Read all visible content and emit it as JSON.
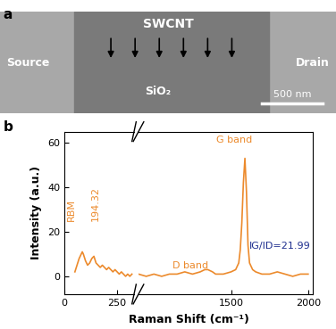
{
  "panel_a": {
    "label": "a",
    "texts": {
      "nanotube": "SWCNT",
      "source": "Source",
      "drain": "Drain",
      "substrate": "SiO₂",
      "scale_bar": "500 nm"
    }
  },
  "chart_data": {
    "type": "line",
    "label": "b",
    "x_label": "Raman Shift (cm⁻¹)",
    "y_label": "Intensity (a.u.)",
    "ylim": [
      -8,
      65
    ],
    "yticks": [
      0,
      20,
      40,
      60
    ],
    "color": "#ec8a2c",
    "segments": [
      {
        "xlim": [
          0,
          330
        ],
        "xticks": [
          0,
          250
        ],
        "x": [
          50,
          60,
          70,
          80,
          85,
          90,
          100,
          110,
          120,
          130,
          140,
          150,
          160,
          170,
          180,
          190,
          200,
          210,
          220,
          230,
          240,
          250,
          260,
          270,
          280,
          290,
          300,
          310,
          320
        ],
        "values": [
          2,
          5,
          8,
          10,
          11,
          10,
          7,
          5,
          6,
          8,
          9,
          6,
          5,
          4,
          5,
          4,
          3,
          4,
          3,
          2,
          3,
          2,
          1,
          2,
          1,
          0,
          1,
          0,
          1
        ]
      },
      {
        "xlim": [
          900,
          2030
        ],
        "xticks": [
          1500,
          2000
        ],
        "x": [
          900,
          950,
          1000,
          1050,
          1100,
          1150,
          1200,
          1250,
          1300,
          1330,
          1350,
          1380,
          1400,
          1450,
          1500,
          1530,
          1550,
          1560,
          1570,
          1580,
          1590,
          1600,
          1610,
          1620,
          1640,
          1660,
          1700,
          1750,
          1800,
          1850,
          1900,
          1950,
          2000
        ],
        "values": [
          1,
          0,
          1,
          0,
          1,
          1,
          2,
          1,
          2,
          3,
          3,
          2,
          1,
          1,
          2,
          3,
          6,
          12,
          24,
          42,
          53,
          38,
          14,
          6,
          3,
          2,
          1,
          1,
          2,
          1,
          0,
          1,
          1
        ]
      }
    ],
    "annotations": {
      "rbm": "RBM",
      "rbm_peak": "194.32",
      "d_band": "D band",
      "g_band": "G band",
      "ratio": "IG/ID=21.99"
    }
  }
}
